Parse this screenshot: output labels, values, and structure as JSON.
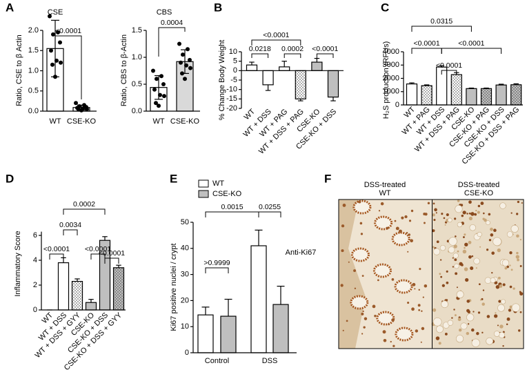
{
  "panel_labels": [
    "A",
    "B",
    "C",
    "D",
    "E",
    "F"
  ],
  "chart_data": [
    {
      "type": "bar",
      "title": "CSE",
      "y_label": "Ratio, CSE to β Actin",
      "categories": [
        "WT",
        "CSE-KO"
      ],
      "series": [
        {
          "colors": [
            "#ffffff",
            "#ffffff"
          ],
          "patterns": [
            "solid",
            "solid"
          ],
          "values": [
            1.55,
            0.09
          ],
          "errors": [
            0.7,
            0.06
          ],
          "points": [
            [
              2.35,
              1.95,
              1.9,
              1.7,
              1.5,
              1.25,
              1.2,
              1.15,
              0.85
            ],
            [
              0.2,
              0.15,
              0.12,
              0.1,
              0.08,
              0.06,
              0.05,
              0.04,
              0.02
            ]
          ]
        }
      ],
      "error_direction": "both",
      "label_orientation": "horizontal",
      "ylim": [
        0,
        2
      ],
      "yticks": [
        {
          "value": 0,
          "label": "0.0"
        },
        {
          "value": 0.5,
          "label": "0.5"
        },
        {
          "value": 1,
          "label": "1.0"
        },
        {
          "value": 1.5,
          "label": "1.5"
        },
        {
          "value": 2,
          "label": "2.0"
        }
      ],
      "annotations": [
        "<0.0001"
      ]
    },
    {
      "type": "bar",
      "title": "CBS",
      "y_label": "Ratio, CBS to β-Actin",
      "categories": [
        "WT",
        "CSE-KO"
      ],
      "series": [
        {
          "colors": [
            "#ffffff",
            "#d9d9d9"
          ],
          "patterns": [
            "solid",
            "solid"
          ],
          "values": [
            0.44,
            0.92
          ],
          "errors": [
            0.22,
            0.22
          ],
          "points": [
            [
              0.75,
              0.65,
              0.6,
              0.5,
              0.4,
              0.3,
              0.28,
              0.15,
              0.1
            ],
            [
              1.25,
              1.15,
              1.05,
              0.95,
              0.9,
              0.85,
              0.8,
              0.7,
              0.6
            ]
          ]
        }
      ],
      "error_direction": "both",
      "label_orientation": "horizontal",
      "ylim": [
        0,
        1.5
      ],
      "yticks": [
        {
          "value": 0,
          "label": "0.0"
        },
        {
          "value": 0.5,
          "label": "0.5"
        },
        {
          "value": 1,
          "label": "1.0"
        },
        {
          "value": 1.5,
          "label": "1.5"
        }
      ],
      "annotations": [
        "0.0004"
      ]
    },
    {
      "type": "bar",
      "y_label": "% Change Body Weight",
      "categories": [
        "WT",
        "WT + DSS",
        "WT + PAG",
        "WT + DSS + PAG",
        "CSE-KO",
        "CSE-KO + DSS"
      ],
      "series": [
        {
          "colors": [
            "#ffffff",
            "#ffffff",
            "#ffffff",
            "#ffffff",
            "#bfbfbf",
            "#bfbfbf"
          ],
          "patterns": [
            "solid",
            "solid",
            "solid",
            "dots",
            "solid",
            "solid"
          ],
          "values": [
            3,
            -7.5,
            2,
            -15,
            4.5,
            -14
          ],
          "errors": [
            1.5,
            3,
            3,
            1,
            2,
            2
          ]
        }
      ],
      "error_direction": "outward",
      "label_orientation": "rotated",
      "ylim": [
        -20,
        10
      ],
      "yticks": [
        10,
        5,
        0,
        -5,
        -10,
        -15,
        -20
      ],
      "annotations": [
        "<0.0001",
        "0.0218",
        "0.0002",
        "<0.0001"
      ]
    },
    {
      "type": "bar",
      "y_label": "H₂S production (RFUs)",
      "categories": [
        "WT",
        "WT + PAG",
        "WT + DSS",
        "WT + DSS + PAG",
        "CSE-KO",
        "CSE-KO + PAG",
        "CSE-KO + DSS",
        "CSE-KO + DSS + PAG"
      ],
      "series": [
        {
          "colors": [
            "#ffffff",
            "#ffffff",
            "#ffffff",
            "#ffffff",
            "#bfbfbf",
            "#bfbfbf",
            "#bfbfbf",
            "#bfbfbf"
          ],
          "patterns": [
            "solid",
            "dots",
            "solid",
            "dots",
            "solid",
            "dots",
            "solid",
            "dots"
          ],
          "values": [
            1580,
            1450,
            2850,
            2280,
            1230,
            1230,
            1500,
            1520
          ],
          "errors": [
            80,
            60,
            100,
            150,
            40,
            40,
            60,
            70
          ]
        }
      ],
      "error_direction": "outward",
      "label_orientation": "rotated",
      "ylim": [
        0,
        4000
      ],
      "yticks": [
        0,
        1000,
        2000,
        3000,
        4000
      ],
      "annotations": [
        "0.0315",
        "<0.0001",
        "<0.0001",
        "<0.0001"
      ]
    },
    {
      "type": "bar",
      "y_label": "Inflammatory Score",
      "categories": [
        "WT",
        "WT + DSS",
        "WT + DSS + GYY",
        "CSE-KO",
        "CSE-KO + DSS",
        "CSE-KO + DSS + GYY"
      ],
      "series": [
        {
          "colors": [
            "#ffffff",
            "#ffffff",
            "#ffffff",
            "#bfbfbf",
            "#bfbfbf",
            "#bfbfbf"
          ],
          "patterns": [
            "solid",
            "solid",
            "dots",
            "solid",
            "solid",
            "dots"
          ],
          "values": [
            0,
            3.8,
            2.3,
            0.6,
            5.6,
            3.4
          ],
          "errors": [
            0,
            0.4,
            0.2,
            0.25,
            0.3,
            0.2
          ]
        }
      ],
      "error_direction": "outward",
      "label_orientation": "rotated",
      "ylim": [
        0,
        6.3
      ],
      "yticks": [
        0,
        2,
        4,
        6
      ],
      "annotations": [
        "0.0002",
        "0.0034",
        "<0.0001",
        "<0.0001",
        "<0.0001"
      ]
    },
    {
      "type": "bar",
      "y_label": "Ki67 positive nuclei / crypt",
      "categories": [
        "Control",
        "DSS"
      ],
      "series": [
        {
          "name": "WT",
          "color": "#ffffff",
          "values": [
            14.5,
            41
          ],
          "errors": [
            3,
            6
          ]
        },
        {
          "name": "CSE-KO",
          "color": "#bfbfbf",
          "values": [
            14,
            18.5
          ],
          "errors": [
            6.5,
            7
          ]
        }
      ],
      "error_direction": "outward",
      "label_orientation": "horizontal",
      "legend": "top-left",
      "ylim": [
        0,
        50
      ],
      "yticks": [
        0,
        10,
        20,
        30,
        40,
        50
      ],
      "annotations": [
        "0.0015",
        "0.0255",
        ">0.9999"
      ]
    }
  ],
  "image_panel": {
    "columns": [
      {
        "line1": "DSS-treated",
        "line2": "WT"
      },
      {
        "line1": "DSS-treated",
        "line2": "CSE-KO"
      }
    ],
    "row_label": "Anti-Ki67"
  }
}
